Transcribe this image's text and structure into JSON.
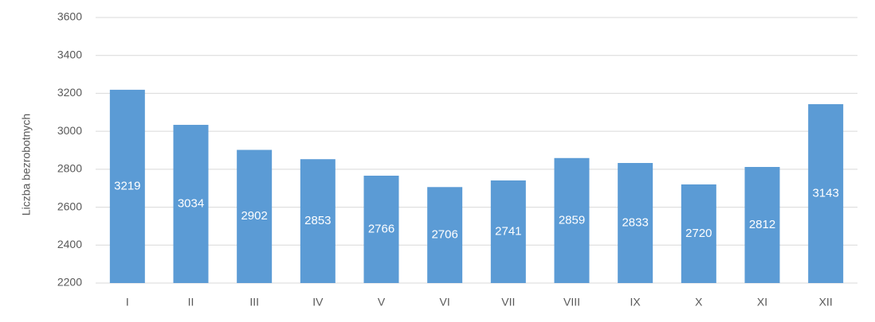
{
  "chart_data": {
    "type": "bar",
    "y_label": "Liczba bezrobotnych",
    "categories": [
      "I",
      "II",
      "III",
      "IV",
      "V",
      "VI",
      "VII",
      "VIII",
      "IX",
      "X",
      "XI",
      "XII"
    ],
    "values": [
      3219,
      3034,
      2902,
      2853,
      2766,
      2706,
      2741,
      2859,
      2833,
      2720,
      2812,
      3143
    ],
    "color": "#5b9bd5",
    "ylim": [
      2200,
      3600
    ],
    "yticks": [
      2200,
      2400,
      2600,
      2800,
      3000,
      3200,
      3400,
      3600
    ],
    "grid": true
  }
}
